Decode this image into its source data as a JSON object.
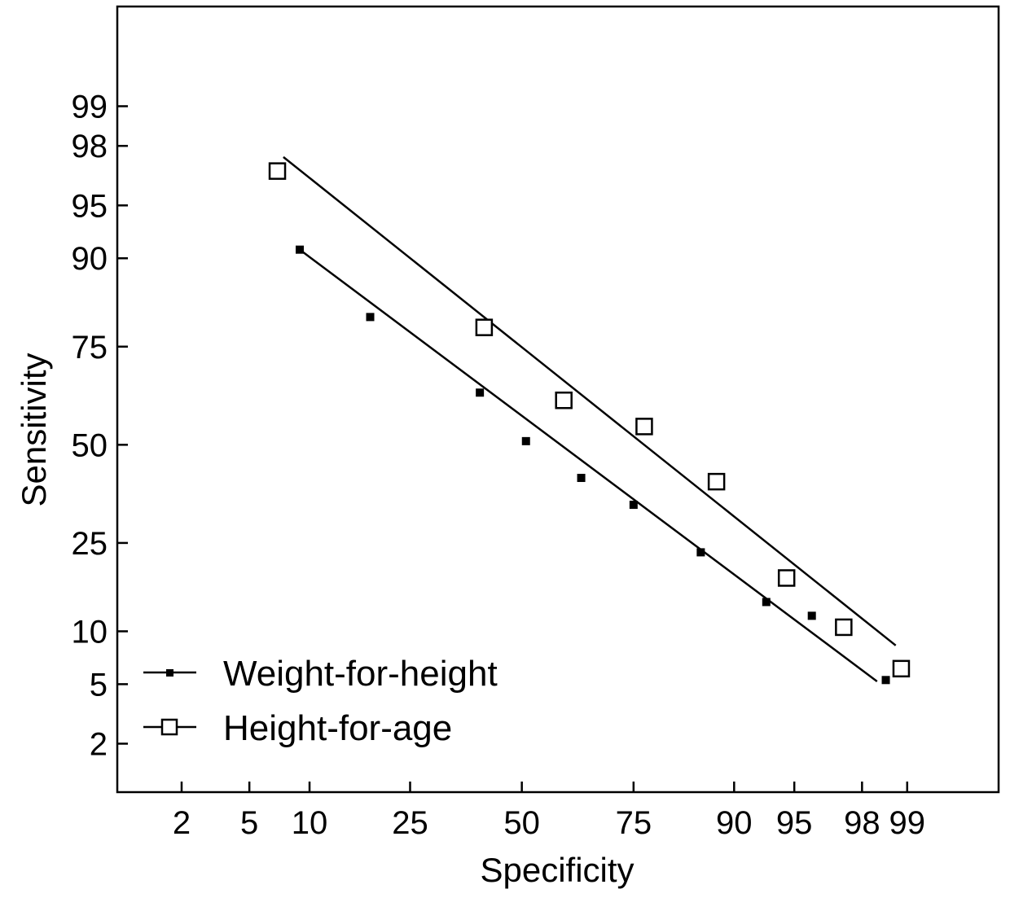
{
  "chart_data": {
    "type": "scatter",
    "title": "",
    "xlabel": "Specificity",
    "ylabel": "Sensitivity",
    "scale": "probit",
    "x_ticks": [
      2,
      5,
      10,
      25,
      50,
      75,
      90,
      95,
      98,
      99
    ],
    "y_ticks": [
      2,
      5,
      10,
      25,
      50,
      75,
      90,
      95,
      98,
      99
    ],
    "x_tick_labels": [
      "2",
      "5",
      "10",
      "25",
      "50",
      "75",
      "90",
      "95",
      "98",
      "99"
    ],
    "y_tick_labels": [
      "2",
      "5",
      "10",
      "25",
      "50",
      "75",
      "90",
      "95",
      "98",
      "99"
    ],
    "xlim": [
      0.73,
      99.8
    ],
    "ylim": [
      0.85,
      99.87
    ],
    "grid": false,
    "legend_position": "bottom-left",
    "series": [
      {
        "name": "Weight-for-height",
        "marker": "filled-square-small",
        "points": [
          {
            "x": 9,
            "y": 91
          },
          {
            "x": 18,
            "y": 81
          },
          {
            "x": 40,
            "y": 64
          },
          {
            "x": 51,
            "y": 51
          },
          {
            "x": 64,
            "y": 41
          },
          {
            "x": 75,
            "y": 34
          },
          {
            "x": 86,
            "y": 23
          },
          {
            "x": 93,
            "y": 14
          },
          {
            "x": 96,
            "y": 12
          },
          {
            "x": 98.6,
            "y": 5.3
          }
        ],
        "fit_line": {
          "x": [
            9,
            98.4
          ],
          "y": [
            91,
            5.2
          ]
        }
      },
      {
        "name": "Height-for-age",
        "marker": "open-square",
        "points": [
          {
            "x": 7,
            "y": 97
          },
          {
            "x": 41,
            "y": 79
          },
          {
            "x": 60,
            "y": 62
          },
          {
            "x": 77,
            "y": 55
          },
          {
            "x": 88,
            "y": 40
          },
          {
            "x": 94.5,
            "y": 18
          },
          {
            "x": 97.4,
            "y": 10.5
          },
          {
            "x": 98.9,
            "y": 6.2
          }
        ],
        "fit_line": {
          "x": [
            7.5,
            98.8
          ],
          "y": [
            97.6,
            8.4
          ]
        }
      }
    ]
  }
}
